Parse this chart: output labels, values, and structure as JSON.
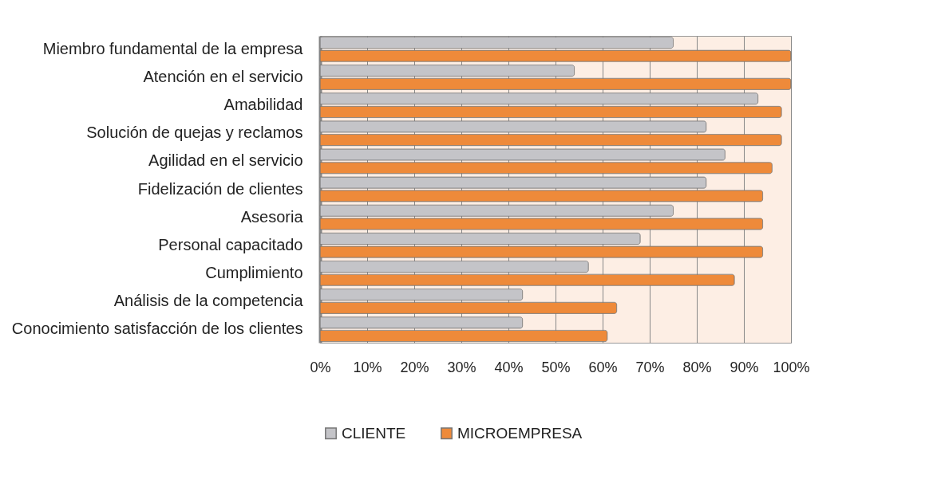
{
  "chart_data": {
    "type": "bar",
    "orientation": "horizontal",
    "categories": [
      "Miembro fundamental de la empresa",
      "Atención en el servicio",
      "Amabilidad",
      "Solución de quejas y reclamos",
      "Agilidad en el servicio",
      "Fidelización de clientes",
      "Asesoria",
      "Personal capacitado",
      "Cumplimiento",
      "Análisis de la competencia",
      "Conocimiento satisfacción de los clientes"
    ],
    "series": [
      {
        "name": "CLIENTE",
        "color": "#c4c4c8",
        "values": [
          75,
          54,
          93,
          82,
          86,
          82,
          75,
          68,
          57,
          43,
          43
        ]
      },
      {
        "name": "MICROEMPRESA",
        "color": "#ee8a3a",
        "values": [
          100,
          100,
          98,
          98,
          96,
          94,
          94,
          94,
          88,
          63,
          61
        ]
      }
    ],
    "xlim": [
      0,
      100
    ],
    "xticks": [
      {
        "value": 0,
        "label": "0%"
      },
      {
        "value": 10,
        "label": "10%"
      },
      {
        "value": 20,
        "label": "20%"
      },
      {
        "value": 30,
        "label": "30%"
      },
      {
        "value": 40,
        "label": "40%"
      },
      {
        "value": 50,
        "label": "50%"
      },
      {
        "value": 60,
        "label": "60%"
      },
      {
        "value": 70,
        "label": "70%"
      },
      {
        "value": 80,
        "label": "80%"
      },
      {
        "value": 90,
        "label": "90%"
      },
      {
        "value": 100,
        "label": "100%"
      }
    ],
    "grid": "x",
    "legend": "bottom"
  }
}
